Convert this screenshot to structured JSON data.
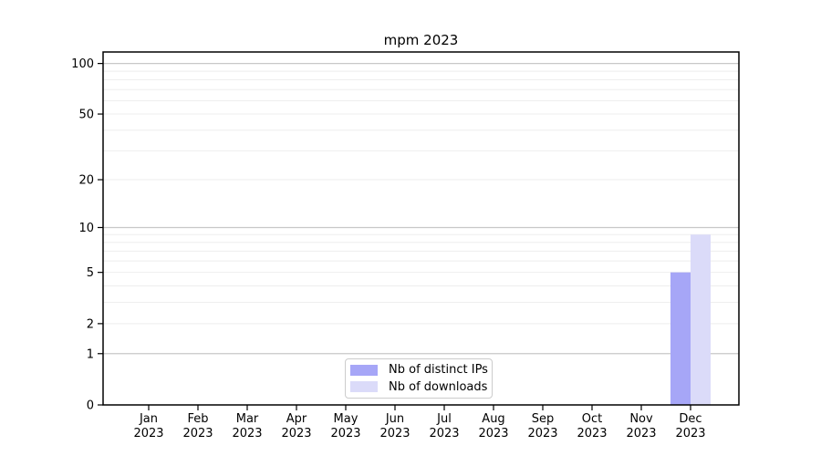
{
  "chart_data": {
    "type": "bar",
    "title": "mpm 2023",
    "categories": [
      "Jan",
      "Feb",
      "Mar",
      "Apr",
      "May",
      "Jun",
      "Jul",
      "Aug",
      "Sep",
      "Oct",
      "Nov",
      "Dec"
    ],
    "year": "2023",
    "series": [
      {
        "name": "Nb of distinct IPs",
        "color": "#a6a6f7",
        "values": [
          0,
          0,
          0,
          0,
          0,
          0,
          0,
          0,
          0,
          0,
          0,
          5
        ]
      },
      {
        "name": "Nb of downloads",
        "color": "#dbdbf9",
        "values": [
          0,
          0,
          0,
          0,
          0,
          0,
          0,
          0,
          0,
          0,
          0,
          9
        ]
      }
    ],
    "xlabel": "",
    "ylabel": "",
    "yscale": "log10(value+1)",
    "ylim": [
      0,
      117
    ],
    "yticks": [
      100,
      50,
      20,
      10,
      5,
      2,
      1,
      0
    ],
    "ytick_labels": [
      "100",
      "50",
      "20",
      "10",
      "5",
      "2",
      "1",
      "0"
    ],
    "grid": "on",
    "grid_major_values": [
      100,
      10,
      1
    ],
    "grid_minor_values": [
      90,
      80,
      70,
      60,
      50,
      40,
      30,
      20,
      9,
      8,
      7,
      6,
      5,
      4,
      3,
      2
    ],
    "legend_position": "bottom-center-inside"
  },
  "colors": {
    "bar_distinct_ips": "#a6a6f7",
    "bar_downloads": "#dbdbf9",
    "grid_major": "#c8c8c8",
    "grid_minor": "#eeeeee",
    "axis_frame": "#000000",
    "text": "#000000",
    "legend_border": "#cccccc",
    "background": "#ffffff"
  }
}
